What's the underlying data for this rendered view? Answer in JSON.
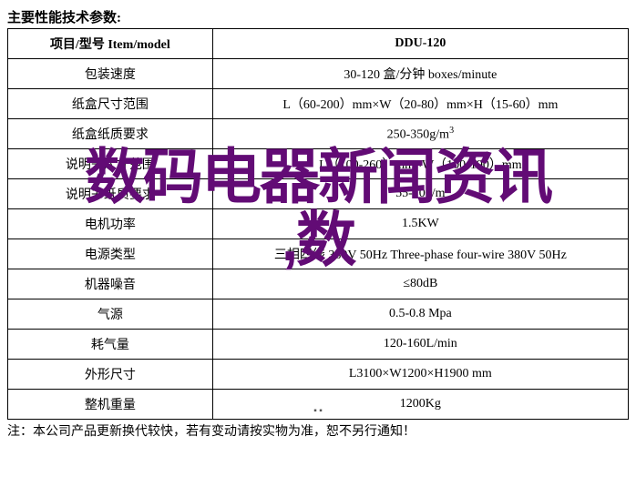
{
  "heading": "主要性能技术参数:",
  "columns": {
    "left": "项目/型号 Item/model",
    "right": "DDU-120"
  },
  "rows": [
    {
      "label": "包装速度",
      "value": "30-120 盒/分钟 boxes/minute"
    },
    {
      "label": "纸盒尺寸范围",
      "value": "L（60-200）mm×W（20-80）mm×H（15-60）mm"
    },
    {
      "label": "纸盒纸质要求",
      "value_html": "250-350g/m<span class='sup'>3</span>"
    },
    {
      "label": "说明书尺寸范围",
      "value": "L（100-260）mm×W（100-190）mm"
    },
    {
      "label": "说明书纸质要求",
      "value": "55-70g/m"
    },
    {
      "label": "电机功率",
      "value": "1.5KW"
    },
    {
      "label": "电源类型",
      "value": "三相四线 380V 50Hz Three-phase four-wire 380V 50Hz"
    },
    {
      "label": "机器噪音",
      "value": "≤80dB"
    },
    {
      "label": "气源",
      "value": "0.5-0.8 Mpa"
    },
    {
      "label": "耗气量",
      "value": "120-160L/min"
    },
    {
      "label": "外形尺寸",
      "value": "L3100×W1200×H1900 mm"
    },
    {
      "label": "整机重量",
      "value": "1200Kg"
    }
  ],
  "footnote": "注：本公司产品更新换代较快，若有变动请按实物为准，恕不另行通知！",
  "overlay_line1": "数码电器新闻资讯",
  "overlay_line2": ",数",
  "overlay_color": "#620b75",
  "handle_glyph": "▪  ▪"
}
